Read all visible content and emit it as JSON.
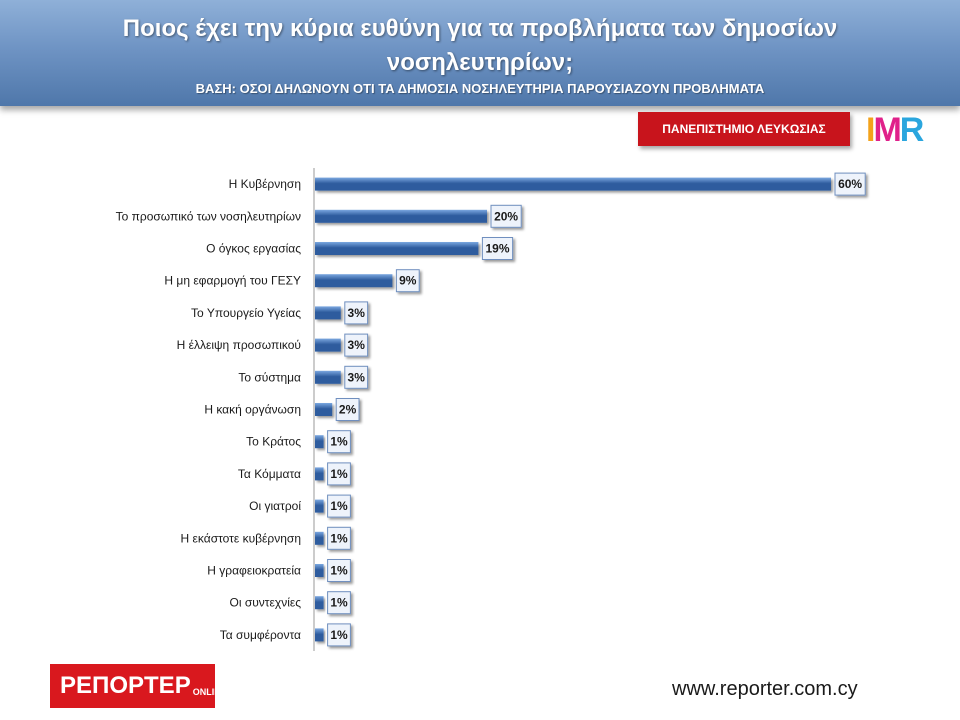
{
  "header": {
    "title": "Ποιος  έχει την κύρια ευθύνη για τα προβλήματα των δημοσίων νοσηλευτηρίων;",
    "subtitle": "ΒΑΣΗ: ΟΣΟΙ ΔΗΛΩΝΟΥΝ ΟΤΙ ΤΑ ΔΗΜΟΣΙΑ ΝΟΣΗΛΕΥΤΗΡΙΑ ΠΑΡΟΥΣΙΑΖΟΥΝ ΠΡΟΒΛΗΜΑΤΑ"
  },
  "logos": {
    "university": "ΠΑΝΕΠΙΣΤΗΜΙΟ ΛΕΥΚΩΣΙΑΣ",
    "imr": "IMR",
    "reporter_main": "ΡΕΠΟΡΤΕΡ",
    "reporter_small": "ONLINE"
  },
  "footer": {
    "website": "www.reporter.com.cy"
  },
  "colors": {
    "bar_dark": "#2e5c9e",
    "bar_light": "#7ba7e0",
    "label_box_border": "#6f8fbf",
    "label_box_fill": "#eef3fb"
  },
  "chart_data": {
    "type": "bar",
    "orientation": "horizontal",
    "title": "Ποιος  έχει την κύρια ευθύνη για τα προβλήματα των δημοσίων νοσηλευτηρίων;",
    "categories": [
      "Η Κυβέρνηση",
      "Το προσωπικό των νοσηλευτηρίων",
      "Ο όγκος εργασίας",
      "Η μη εφαρμογή του ΓΕΣΥ",
      "Το Υπουργείο Υγείας",
      "Η έλλειψη προσωπικού",
      "Το σύστημα",
      "Η κακή οργάνωση",
      "Το Κράτος",
      "Τα Κόμματα",
      "Οι γιατροί",
      "Η εκάστοτε κυβέρνηση",
      "Η γραφειοκρατεία",
      "Οι συντεχνίες",
      "Τα συμφέροντα"
    ],
    "values": [
      60,
      20,
      19,
      9,
      3,
      3,
      3,
      2,
      1,
      1,
      1,
      1,
      1,
      1,
      1
    ],
    "value_labels": [
      "60%",
      "20%",
      "19%",
      "9%",
      "3%",
      "3%",
      "3%",
      "2%",
      "1%",
      "1%",
      "1%",
      "1%",
      "1%",
      "1%",
      "1%"
    ],
    "xlim": [
      0,
      60
    ],
    "grid": false,
    "xlabel": "",
    "ylabel": ""
  }
}
